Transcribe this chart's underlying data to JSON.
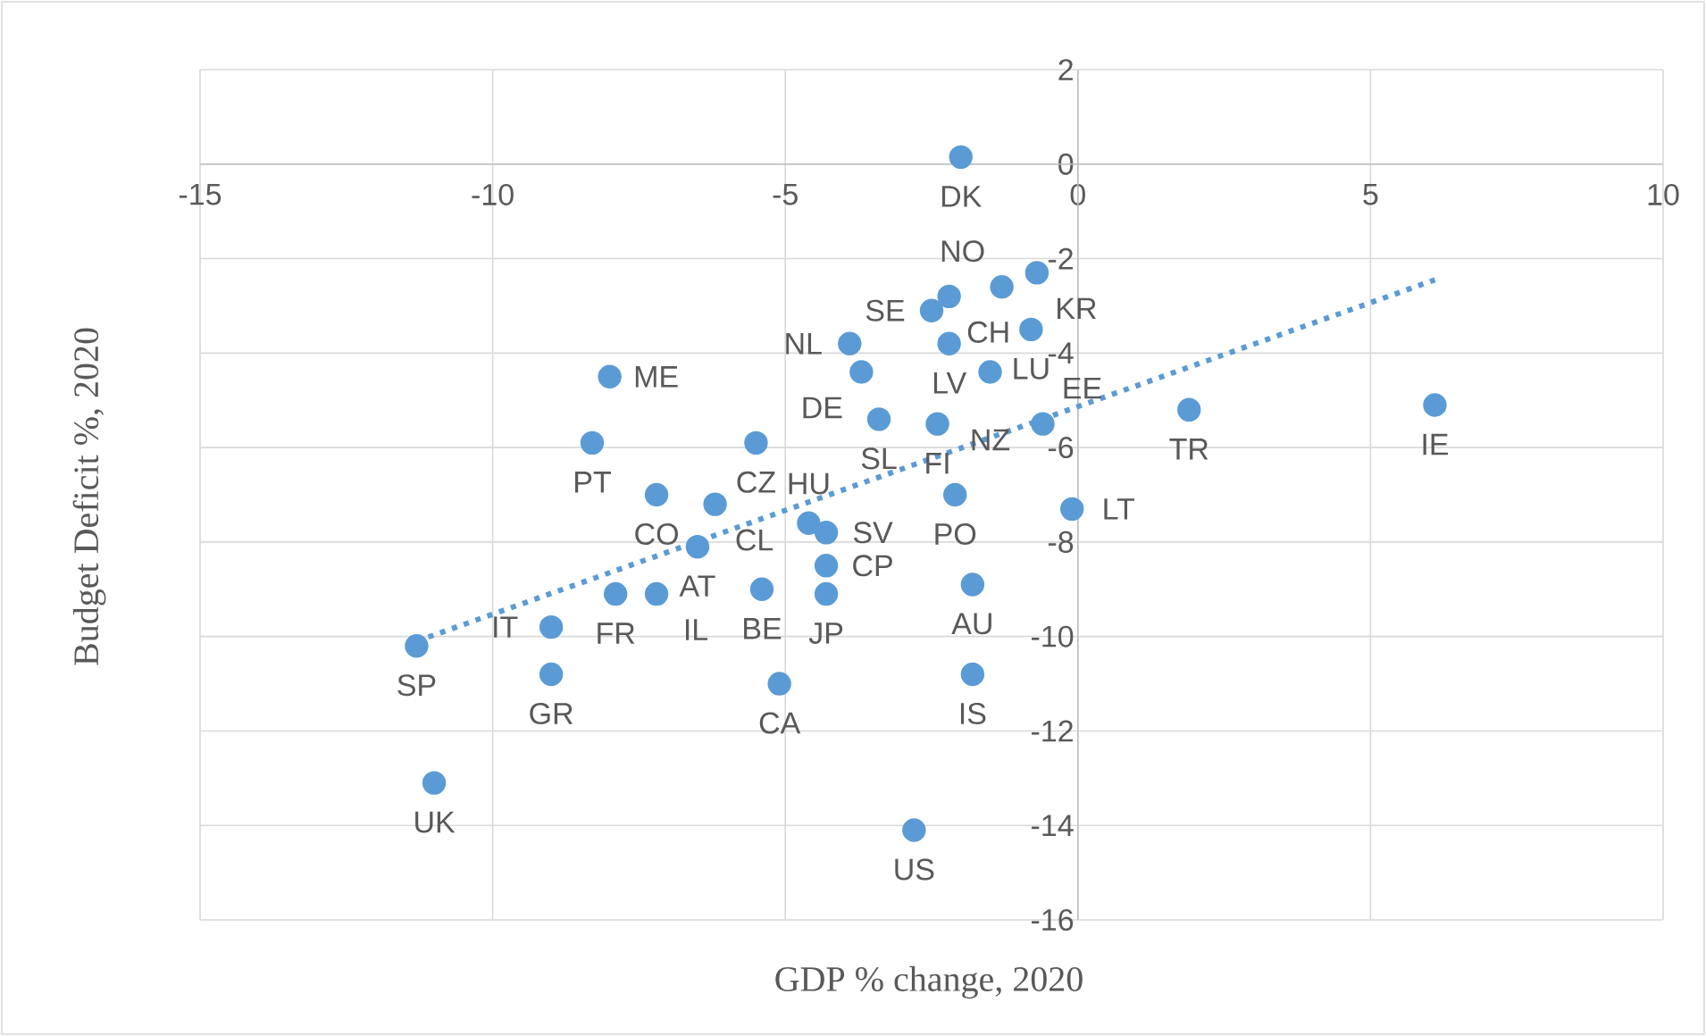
{
  "chart_data": {
    "type": "scatter",
    "xlabel": "GDP % change, 2020",
    "ylabel": "Budget Deficit %, 2020",
    "xlim": [
      -15,
      10
    ],
    "ylim": [
      -16,
      2
    ],
    "xticks": [
      -15,
      -10,
      -5,
      0,
      5,
      10
    ],
    "yticks": [
      -16,
      -14,
      -12,
      -10,
      -8,
      -6,
      -4,
      -2,
      0,
      2
    ],
    "grid": true,
    "marker": "circle",
    "series": [
      {
        "type": "scatter",
        "color": "#5b9bd5",
        "x": [
          -2.0,
          -0.7,
          -1.3,
          -2.2,
          -2.5,
          -0.8,
          -3.9,
          -2.2,
          -3.7,
          -1.5,
          -3.4,
          -2.4,
          -0.6,
          -0.1,
          -2.1,
          -1.8,
          -1.8,
          -5.5,
          -7.2,
          -6.2,
          -6.5,
          -7.9,
          -7.2,
          -9.0,
          -9.0,
          -5.4,
          -5.1,
          -4.6,
          -4.3,
          -4.3,
          -4.3,
          -8.0,
          -8.3,
          -11.3,
          -11.0,
          -2.8,
          1.9,
          6.1
        ],
        "values": [
          0.15,
          -2.3,
          -2.6,
          -2.8,
          -3.1,
          -3.5,
          -3.8,
          -3.8,
          -4.4,
          -4.4,
          -5.4,
          -5.5,
          -5.5,
          -7.3,
          -7.0,
          -8.9,
          -10.8,
          -5.9,
          -7.0,
          -7.2,
          -8.1,
          -9.1,
          -9.1,
          -9.8,
          -10.8,
          -9.0,
          -11.0,
          -7.6,
          -7.8,
          -8.5,
          -9.1,
          -4.5,
          -5.9,
          -10.2,
          -13.1,
          -14.1,
          -5.2,
          -5.1
        ]
      },
      {
        "type": "line",
        "marker": "none",
        "line_style": "dotted",
        "color": "#5b9bd5",
        "x": [
          -11.3,
          6.1
        ],
        "values": [
          -10.1,
          -2.45
        ]
      }
    ],
    "annotations": [
      {
        "text": "DK",
        "x": -2.0,
        "y": 0.15
      },
      {
        "text": "KR",
        "x": -0.7,
        "y": -2.3
      },
      {
        "text": "NO",
        "x": -1.3,
        "y": -2.6
      },
      {
        "text": "CH",
        "x": -2.2,
        "y": -2.8
      },
      {
        "text": "SE",
        "x": -2.5,
        "y": -3.1
      },
      {
        "text": "LU",
        "x": -0.8,
        "y": -3.5
      },
      {
        "text": "NL",
        "x": -3.9,
        "y": -3.8
      },
      {
        "text": "LV",
        "x": -2.2,
        "y": -3.8
      },
      {
        "text": "DE",
        "x": -3.7,
        "y": -4.4
      },
      {
        "text": "NZ",
        "x": -1.5,
        "y": -4.4
      },
      {
        "text": "SL",
        "x": -3.4,
        "y": -5.4
      },
      {
        "text": "FI",
        "x": -2.4,
        "y": -5.5
      },
      {
        "text": "EE",
        "x": -0.6,
        "y": -5.5
      },
      {
        "text": "LT",
        "x": -0.1,
        "y": -7.3
      },
      {
        "text": "PO",
        "x": -2.1,
        "y": -7.0
      },
      {
        "text": "AU",
        "x": -1.8,
        "y": -8.9
      },
      {
        "text": "IS",
        "x": -1.8,
        "y": -10.8
      },
      {
        "text": "CZ",
        "x": -5.5,
        "y": -5.9
      },
      {
        "text": "CO",
        "x": -7.2,
        "y": -7.0
      },
      {
        "text": "CL",
        "x": -6.2,
        "y": -7.2
      },
      {
        "text": "AT",
        "x": -6.5,
        "y": -8.1
      },
      {
        "text": "FR",
        "x": -7.9,
        "y": -9.1
      },
      {
        "text": "IL",
        "x": -7.2,
        "y": -9.1
      },
      {
        "text": "IT",
        "x": -9.0,
        "y": -9.8
      },
      {
        "text": "GR",
        "x": -9.0,
        "y": -10.8
      },
      {
        "text": "BE",
        "x": -5.4,
        "y": -9.0
      },
      {
        "text": "CA",
        "x": -5.1,
        "y": -11.0
      },
      {
        "text": "HU",
        "x": -4.6,
        "y": -7.6
      },
      {
        "text": "SV",
        "x": -4.3,
        "y": -7.8
      },
      {
        "text": "CP",
        "x": -4.3,
        "y": -8.5
      },
      {
        "text": "JP",
        "x": -4.3,
        "y": -9.1
      },
      {
        "text": "ME",
        "x": -8.0,
        "y": -4.5
      },
      {
        "text": "PT",
        "x": -8.3,
        "y": -5.9
      },
      {
        "text": "SP",
        "x": -11.3,
        "y": -10.2
      },
      {
        "text": "UK",
        "x": -11.0,
        "y": -13.1
      },
      {
        "text": "US",
        "x": -2.8,
        "y": -14.1
      },
      {
        "text": "TR",
        "x": 1.9,
        "y": -5.2
      },
      {
        "text": "IE",
        "x": 6.1,
        "y": -5.1
      }
    ]
  }
}
